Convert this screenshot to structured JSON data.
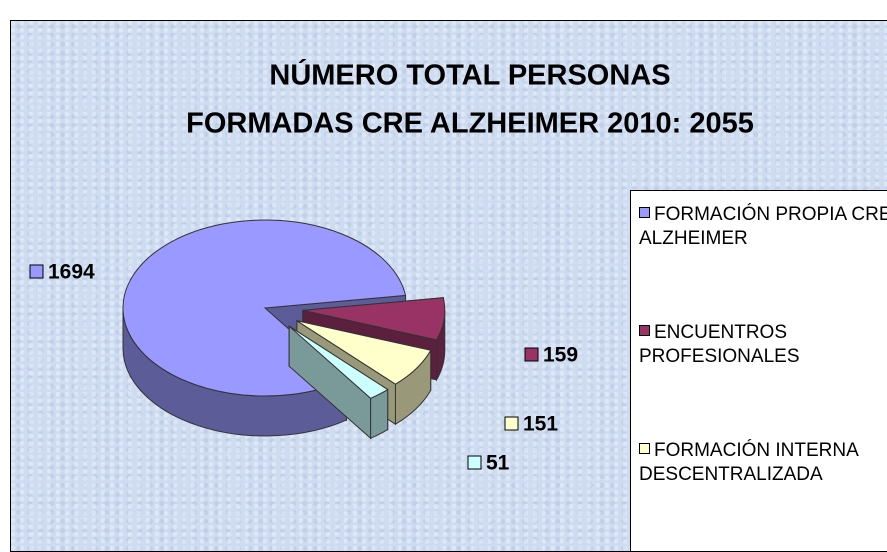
{
  "chart_data": {
    "type": "pie",
    "title": [
      "NÚMERO TOTAL PERSONAS",
      "FORMADAS CRE ALZHEIMER 2010: 2055"
    ],
    "categories": [
      "FORMACIÓN PROPIA CRE ALZHEIMER",
      "ENCUENTROS PROFESIONALES",
      "FORMACIÓN INTERNA DESCENTRALIZADA",
      null
    ],
    "values": [
      1694,
      159,
      151,
      51
    ],
    "colors": [
      "#9999ff",
      "#993366",
      "#ffffcc",
      "#ccffff"
    ],
    "legend": "right"
  }
}
